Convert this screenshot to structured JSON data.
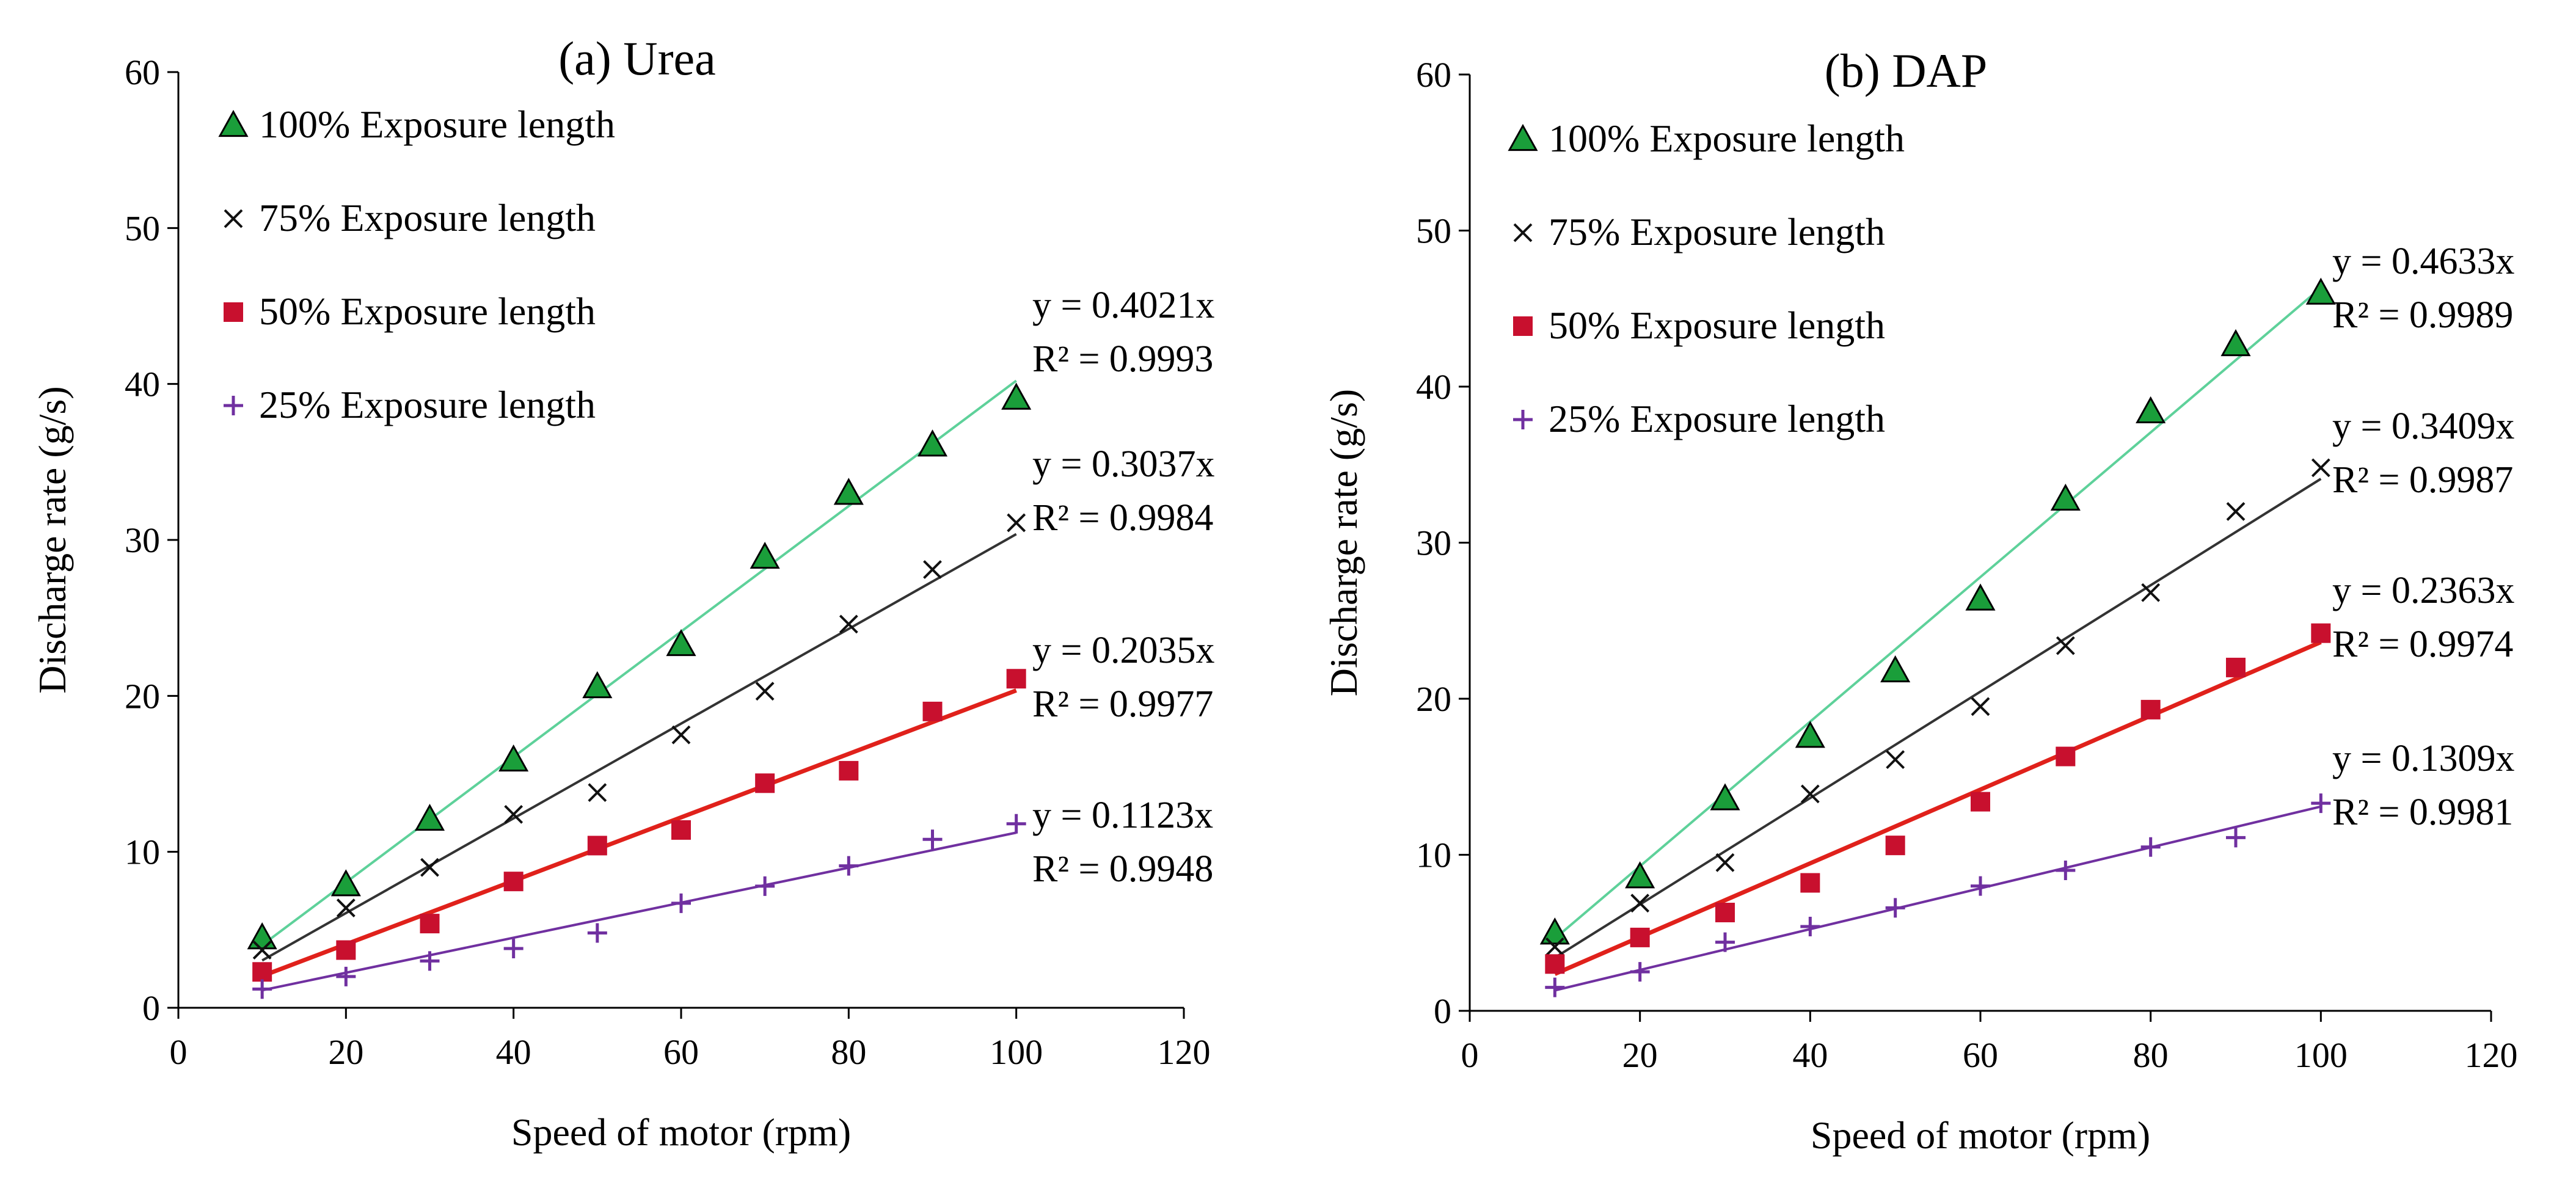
{
  "chart_data": [
    {
      "type": "scatter",
      "title": "(a) Urea",
      "xlabel": "Speed of motor (rpm)",
      "ylabel": "Discharge rate (g/s)",
      "xlim": [
        0,
        120
      ],
      "ylim": [
        0,
        60
      ],
      "xticks": [
        0,
        20,
        40,
        60,
        80,
        100,
        120
      ],
      "yticks": [
        0,
        10,
        20,
        30,
        40,
        50,
        60
      ],
      "legend_position": "top-left",
      "x": [
        10,
        20,
        30,
        40,
        50,
        60,
        70,
        80,
        90,
        100
      ],
      "series": [
        {
          "name": "100% Exposure length",
          "marker": "triangle",
          "color": "#1a9e3a",
          "line_color": "#5ed19a",
          "slope": 0.4021,
          "equation": "y = 0.4021x",
          "r2": "R² = 0.9993",
          "values": [
            4.5,
            7.9,
            12.1,
            15.9,
            20.6,
            23.3,
            28.9,
            33.0,
            36.1,
            39.1
          ]
        },
        {
          "name": "75% Exposure length",
          "marker": "cross",
          "color": "#111111",
          "line_color": "#333333",
          "slope": 0.3037,
          "equation": "y = 0.3037x",
          "r2": "R² = 0.9984",
          "values": [
            3.7,
            6.4,
            9.0,
            12.4,
            13.8,
            17.5,
            20.3,
            24.6,
            28.1,
            31.1
          ]
        },
        {
          "name": "50% Exposure length",
          "marker": "square",
          "color": "#c8102e",
          "line_color": "#e0211b",
          "slope": 0.2035,
          "equation": "y = 0.2035x",
          "r2": "R² = 0.9977",
          "values": [
            2.3,
            3.7,
            5.4,
            8.1,
            10.4,
            11.4,
            14.4,
            15.2,
            19.0,
            21.1
          ]
        },
        {
          "name": "25% Exposure length",
          "marker": "plus",
          "color": "#7030a0",
          "line_color": "#7030a0",
          "slope": 0.1123,
          "equation": "y = 0.1123x",
          "r2": "R² = 0.9948",
          "values": [
            1.2,
            2.0,
            3.0,
            3.8,
            4.8,
            6.7,
            7.8,
            9.1,
            10.8,
            11.8
          ]
        }
      ]
    },
    {
      "type": "scatter",
      "title": "(b) DAP",
      "xlabel": "Speed of motor (rpm)",
      "ylabel": "Discharge rate (g/s)",
      "xlim": [
        0,
        120
      ],
      "ylim": [
        0,
        60
      ],
      "xticks": [
        0,
        20,
        40,
        60,
        80,
        100,
        120
      ],
      "yticks": [
        0,
        10,
        20,
        30,
        40,
        50,
        60
      ],
      "legend_position": "top-left",
      "x": [
        10,
        20,
        30,
        40,
        50,
        60,
        70,
        80,
        90,
        100
      ],
      "series": [
        {
          "name": "100% Exposure length",
          "marker": "triangle",
          "color": "#1a9e3a",
          "line_color": "#5ed19a",
          "slope": 0.4633,
          "equation": "y = 0.4633x",
          "r2": "R² = 0.9989",
          "values": [
            5.0,
            8.6,
            13.6,
            17.6,
            21.8,
            26.4,
            32.8,
            38.4,
            42.7,
            46.0
          ]
        },
        {
          "name": "75% Exposure length",
          "marker": "cross",
          "color": "#111111",
          "line_color": "#333333",
          "slope": 0.3409,
          "equation": "y = 0.3409x",
          "r2": "R² = 0.9987",
          "values": [
            4.1,
            6.9,
            9.5,
            13.9,
            16.1,
            19.5,
            23.4,
            26.8,
            32.0,
            34.8
          ]
        },
        {
          "name": "50% Exposure length",
          "marker": "square",
          "color": "#c8102e",
          "line_color": "#e0211b",
          "slope": 0.2363,
          "equation": "y = 0.2363x",
          "r2": "R² = 0.9974",
          "values": [
            3.0,
            4.7,
            6.3,
            8.2,
            10.6,
            13.4,
            16.3,
            19.3,
            22.0,
            24.2
          ]
        },
        {
          "name": "25% Exposure length",
          "marker": "plus",
          "color": "#7030a0",
          "line_color": "#7030a0",
          "slope": 0.1309,
          "equation": "y = 0.1309x",
          "r2": "R² = 0.9981",
          "values": [
            1.5,
            2.5,
            4.4,
            5.4,
            6.6,
            8.0,
            9.0,
            10.5,
            11.1,
            13.3
          ]
        }
      ]
    }
  ]
}
